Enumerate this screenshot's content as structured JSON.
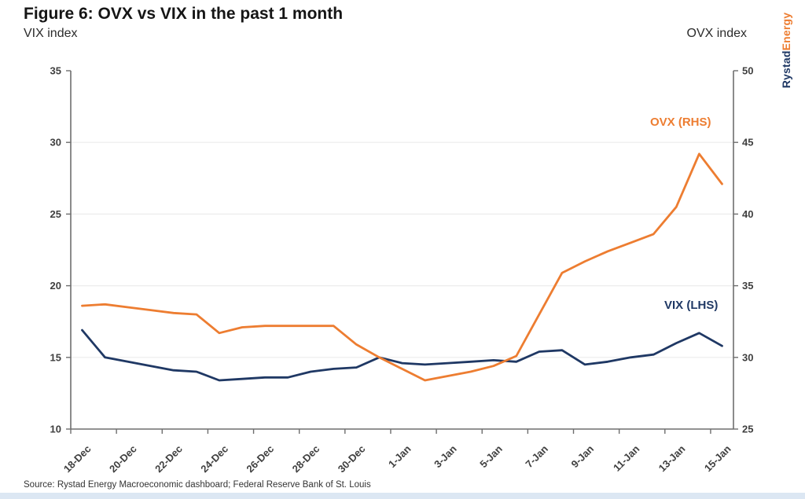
{
  "header": {
    "title": "Figure 6: OVX vs VIX in the past 1 month",
    "left_axis_title": "VIX index",
    "right_axis_title": "OVX index",
    "logo_part1": "Rystad",
    "logo_part2": "Energy"
  },
  "footer": {
    "source": "Source: Rystad Energy Macroeconomic dashboard; Federal Reserve Bank of St. Louis"
  },
  "colors": {
    "vix": "#1f3864",
    "ovx": "#ed7d31",
    "grid": "#ececec",
    "axis": "#6e6e6e",
    "tick_label": "#3f3f3f",
    "footer_bar": "#dce7f3"
  },
  "chart_data": {
    "type": "line",
    "title": "Figure 6: OVX vs VIX in the past 1 month",
    "grid": "horizontal",
    "x_label_every": 2,
    "x_label_rotation": -45,
    "categories": [
      "18-Dec",
      "19-Dec",
      "20-Dec",
      "21-Dec",
      "22-Dec",
      "23-Dec",
      "24-Dec",
      "25-Dec",
      "26-Dec",
      "27-Dec",
      "28-Dec",
      "29-Dec",
      "30-Dec",
      "31-Dec",
      "1-Jan",
      "2-Jan",
      "3-Jan",
      "4-Jan",
      "5-Jan",
      "6-Jan",
      "7-Jan",
      "8-Jan",
      "9-Jan",
      "10-Jan",
      "11-Jan",
      "12-Jan",
      "13-Jan",
      "14-Jan",
      "15-Jan"
    ],
    "left_axis": {
      "title": "VIX index",
      "min": 10,
      "max": 35,
      "step": 5
    },
    "right_axis": {
      "title": "OVX index",
      "min": 25,
      "max": 50,
      "step": 5
    },
    "series": [
      {
        "name": "VIX (LHS)",
        "axis": "left",
        "color": "#1f3864",
        "values": [
          16.9,
          15.0,
          14.7,
          14.4,
          14.1,
          14.0,
          13.4,
          13.5,
          13.6,
          13.6,
          14.0,
          14.2,
          14.3,
          15.0,
          14.6,
          14.5,
          14.6,
          14.7,
          14.8,
          14.7,
          15.4,
          15.5,
          14.5,
          14.7,
          15.0,
          15.2,
          16.0,
          16.7,
          15.8
        ]
      },
      {
        "name": "OVX (RHS)",
        "axis": "right",
        "color": "#ed7d31",
        "values": [
          33.6,
          33.7,
          33.5,
          33.3,
          33.1,
          33.0,
          31.7,
          32.1,
          32.2,
          32.2,
          32.2,
          32.2,
          30.9,
          30.0,
          29.2,
          28.4,
          28.7,
          29.0,
          29.4,
          30.1,
          33.0,
          35.9,
          36.7,
          37.4,
          38.0,
          38.6,
          40.5,
          44.2,
          42.1
        ]
      }
    ],
    "legend_position": "inside-right"
  }
}
